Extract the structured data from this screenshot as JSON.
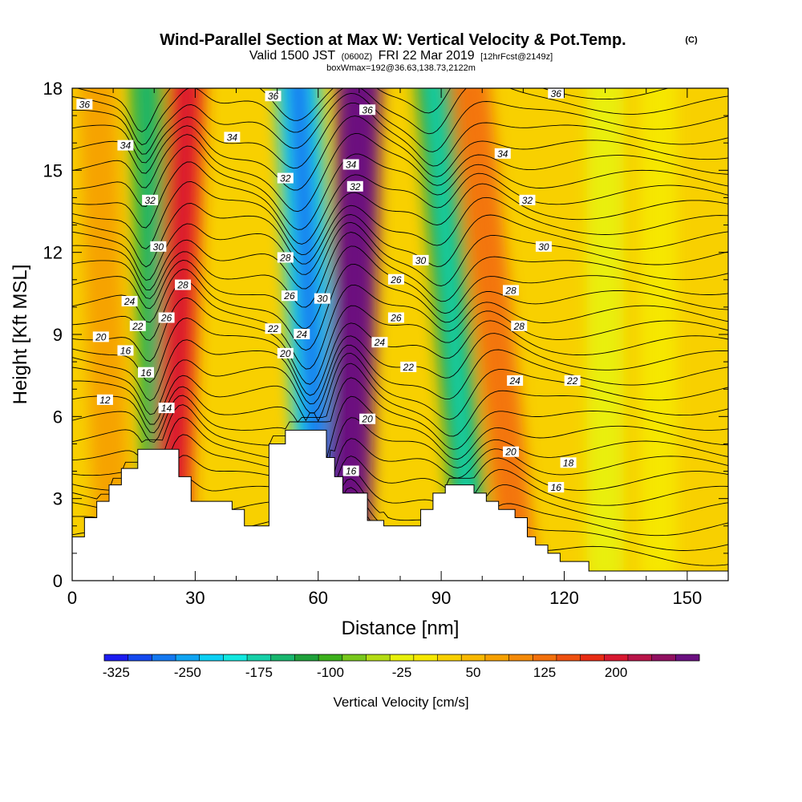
{
  "chart_data": {
    "type": "heatmap",
    "title": "Wind-Parallel Section at Max W: Vertical Velocity & Pot.Temp.",
    "title_mark": "(C)",
    "subtitle_main": "Valid 1500 JST",
    "subtitle_utc": "(0600Z)",
    "subtitle_date": "FRI 22 Mar 2019",
    "subtitle_fcst": "[12hrFcst@2149z]",
    "subtitle2": "boxWmax=192@36.63,138.73,2122m",
    "xlabel": "Distance [nm]",
    "ylabel": "Height [Kft MSL]",
    "xlim": [
      0,
      160
    ],
    "ylim": [
      0,
      18
    ],
    "x_ticks": [
      0,
      30,
      60,
      90,
      120,
      150
    ],
    "x_tick_labels": [
      "0",
      "30",
      "60",
      "90",
      "120",
      "150"
    ],
    "y_ticks": [
      0,
      3,
      6,
      9,
      12,
      15,
      18
    ],
    "y_tick_labels": [
      "0",
      "3",
      "6",
      "9",
      "12",
      "15",
      "18"
    ],
    "colorbar": {
      "title": "Vertical Velocity [cm/s]",
      "labels": [
        "-325",
        "-250",
        "-175",
        "-100",
        "-25",
        "50",
        "125",
        "200"
      ],
      "colors": [
        "#1c1cf0",
        "#1448ee",
        "#1478f0",
        "#10a4f2",
        "#0cd0f4",
        "#12e8e0",
        "#16d0a8",
        "#18b66e",
        "#1ea03a",
        "#3cb01c",
        "#78c81c",
        "#b4dc14",
        "#e8f00c",
        "#f6e800",
        "#f8d000",
        "#f8b800",
        "#f6a000",
        "#f48a08",
        "#f2700c",
        "#ee5010",
        "#e82c14",
        "#d81830",
        "#b81448",
        "#901060",
        "#6a1080"
      ]
    },
    "wind_bands": [
      {
        "x_bottom": 22,
        "x_top": 18,
        "velocity": -110
      },
      {
        "x_bottom": 24,
        "x_top": 28,
        "velocity": 150
      },
      {
        "x_bottom": 61,
        "x_top": 55,
        "velocity": -220
      },
      {
        "x_bottom": 67,
        "x_top": 70,
        "velocity": 230
      },
      {
        "x_bottom": 98,
        "x_top": 88,
        "velocity": -130
      },
      {
        "x_bottom": 109,
        "x_top": 97,
        "velocity": 100
      },
      {
        "x_bottom": 10,
        "x_top": 6,
        "velocity": 60
      },
      {
        "x_bottom": 130,
        "x_top": 130,
        "velocity": -40
      },
      {
        "x_bottom": 143,
        "x_top": 143,
        "velocity": -15
      }
    ],
    "terrain": [
      [
        0,
        1.6
      ],
      [
        3,
        1.6
      ],
      [
        3,
        2.3
      ],
      [
        6,
        2.3
      ],
      [
        6,
        2.9
      ],
      [
        9,
        2.9
      ],
      [
        9,
        3.5
      ],
      [
        12,
        3.5
      ],
      [
        12,
        4.1
      ],
      [
        16,
        4.1
      ],
      [
        16,
        4.8
      ],
      [
        26,
        4.8
      ],
      [
        26,
        3.8
      ],
      [
        29,
        3.8
      ],
      [
        29,
        2.9
      ],
      [
        39,
        2.9
      ],
      [
        39,
        2.6
      ],
      [
        42,
        2.6
      ],
      [
        42,
        2.0
      ],
      [
        48,
        2.0
      ],
      [
        48,
        5.0
      ],
      [
        52,
        5.0
      ],
      [
        52,
        5.5
      ],
      [
        62,
        5.5
      ],
      [
        62,
        4.5
      ],
      [
        64,
        4.5
      ],
      [
        64,
        3.8
      ],
      [
        66,
        3.8
      ],
      [
        66,
        3.2
      ],
      [
        72,
        3.2
      ],
      [
        72,
        2.2
      ],
      [
        76,
        2.2
      ],
      [
        76,
        2.0
      ],
      [
        85,
        2.0
      ],
      [
        85,
        2.6
      ],
      [
        88,
        2.6
      ],
      [
        88,
        3.2
      ],
      [
        91,
        3.2
      ],
      [
        91,
        3.5
      ],
      [
        98,
        3.5
      ],
      [
        98,
        3.2
      ],
      [
        101,
        3.2
      ],
      [
        101,
        2.9
      ],
      [
        104,
        2.9
      ],
      [
        104,
        2.6
      ],
      [
        108,
        2.6
      ],
      [
        108,
        2.3
      ],
      [
        111,
        2.3
      ],
      [
        111,
        1.6
      ],
      [
        113,
        1.6
      ],
      [
        113,
        1.3
      ],
      [
        116,
        1.3
      ],
      [
        116,
        1.0
      ],
      [
        119,
        1.0
      ],
      [
        119,
        0.7
      ],
      [
        126,
        0.7
      ],
      [
        126,
        0.35
      ],
      [
        160,
        0.35
      ]
    ],
    "isentropes": [
      {
        "label": "12",
        "y": 6.6,
        "label_x": 8
      },
      {
        "label": "14",
        "y": 6.3,
        "label_x": 23
      },
      {
        "label": "16",
        "y": 7.6,
        "label_x": 18
      },
      {
        "label": "16",
        "y": 4.0,
        "label_x": 68
      },
      {
        "label": "16",
        "y": 3.4,
        "label_x": 118
      },
      {
        "label": "16",
        "y": 8.4,
        "label_x": 13
      },
      {
        "label": "18",
        "y": 4.3,
        "label_x": 121
      },
      {
        "label": "20",
        "y": 8.9,
        "label_x": 7
      },
      {
        "label": "20",
        "y": 8.3,
        "label_x": 52
      },
      {
        "label": "20",
        "y": 5.9,
        "label_x": 72
      },
      {
        "label": "20",
        "y": 4.7,
        "label_x": 107
      },
      {
        "label": "22",
        "y": 9.3,
        "label_x": 16
      },
      {
        "label": "22",
        "y": 9.2,
        "label_x": 49
      },
      {
        "label": "22",
        "y": 7.8,
        "label_x": 82
      },
      {
        "label": "22",
        "y": 7.3,
        "label_x": 122
      },
      {
        "label": "24",
        "y": 10.2,
        "label_x": 14
      },
      {
        "label": "24",
        "y": 9.0,
        "label_x": 56
      },
      {
        "label": "24",
        "y": 8.7,
        "label_x": 75
      },
      {
        "label": "24",
        "y": 7.3,
        "label_x": 108
      },
      {
        "label": "26",
        "y": 9.6,
        "label_x": 23
      },
      {
        "label": "26",
        "y": 10.4,
        "label_x": 53
      },
      {
        "label": "26",
        "y": 9.6,
        "label_x": 79
      },
      {
        "label": "26",
        "y": 11.0,
        "label_x": 79
      },
      {
        "label": "28",
        "y": 10.8,
        "label_x": 27
      },
      {
        "label": "28",
        "y": 11.8,
        "label_x": 52
      },
      {
        "label": "28",
        "y": 9.3,
        "label_x": 109
      },
      {
        "label": "28",
        "y": 10.6,
        "label_x": 107
      },
      {
        "label": "30",
        "y": 12.2,
        "label_x": 21
      },
      {
        "label": "30",
        "y": 10.3,
        "label_x": 61
      },
      {
        "label": "30",
        "y": 11.7,
        "label_x": 85
      },
      {
        "label": "30",
        "y": 12.2,
        "label_x": 115
      },
      {
        "label": "32",
        "y": 13.9,
        "label_x": 19
      },
      {
        "label": "32",
        "y": 14.7,
        "label_x": 52
      },
      {
        "label": "32",
        "y": 14.4,
        "label_x": 69
      },
      {
        "label": "32",
        "y": 13.9,
        "label_x": 111
      },
      {
        "label": "34",
        "y": 15.9,
        "label_x": 13
      },
      {
        "label": "34",
        "y": 16.2,
        "label_x": 39
      },
      {
        "label": "34",
        "y": 15.2,
        "label_x": 68
      },
      {
        "label": "34",
        "y": 15.6,
        "label_x": 105
      },
      {
        "label": "36",
        "y": 17.4,
        "label_x": 3
      },
      {
        "label": "36",
        "y": 17.7,
        "label_x": 49
      },
      {
        "label": "36",
        "y": 17.2,
        "label_x": 72
      },
      {
        "label": "36",
        "y": 17.8,
        "label_x": 118
      }
    ]
  }
}
